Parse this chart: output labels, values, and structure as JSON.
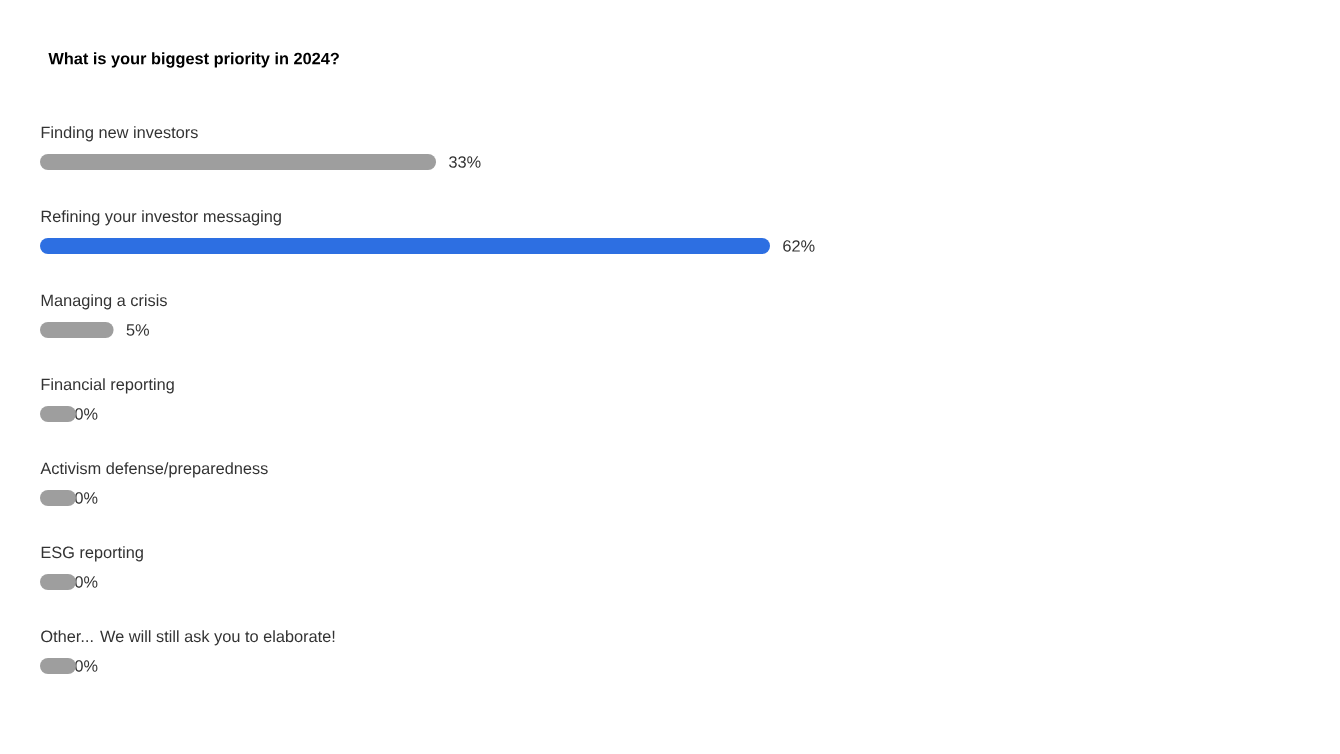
{
  "chart_data": {
    "type": "bar",
    "orientation": "horizontal",
    "title": "What is your biggest priority in 2024?",
    "categories": [
      "Finding new investors",
      "Refining your investor messaging",
      "Managing a crisis",
      "Financial reporting",
      "Activism defense/preparedness",
      "ESG reporting",
      "Other... We will still ask you to elaborate!"
    ],
    "values": [
      33,
      62,
      5,
      0,
      0,
      0,
      0
    ],
    "colors": [
      "#9e9e9e",
      "#2d6fe2",
      "#9e9e9e",
      "#9e9e9e",
      "#9e9e9e",
      "#9e9e9e",
      "#9e9e9e"
    ],
    "value_labels": [
      "33%",
      "62%",
      "5%",
      "0%",
      "0%",
      "0%",
      "0%"
    ]
  }
}
